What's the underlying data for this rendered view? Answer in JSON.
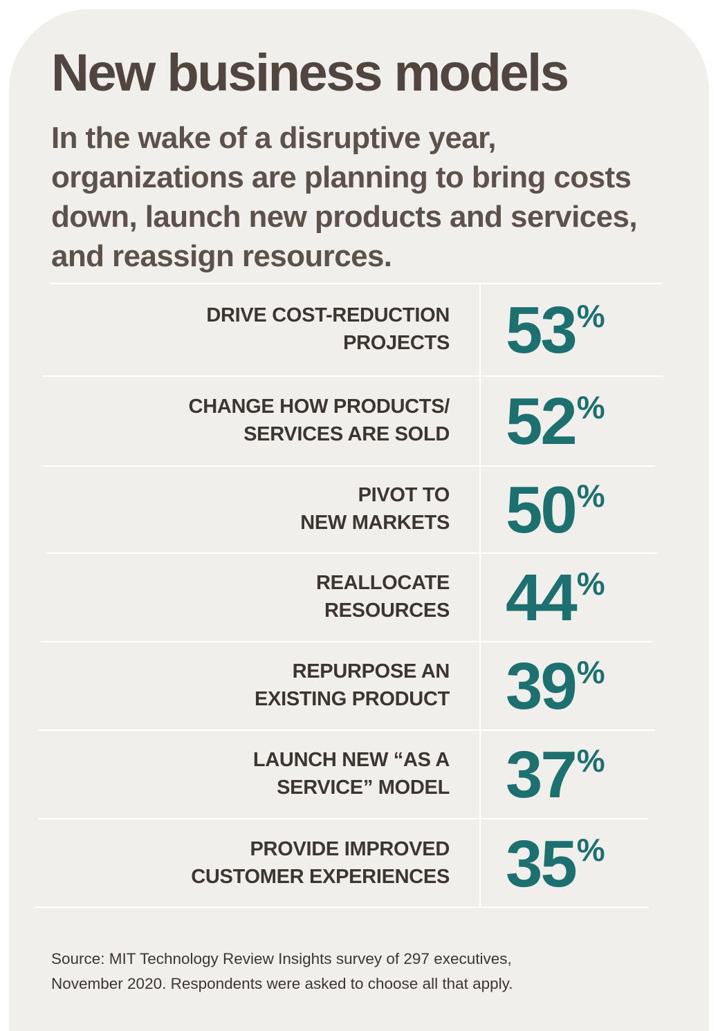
{
  "header": {
    "title": "New business models",
    "subtitle": "In the wake of a disruptive year, organizations are planning to bring costs down, launch new products and services, and reassign resources."
  },
  "colors": {
    "background": "#f1efec",
    "title": "#50463f",
    "value": "#1d7070",
    "label": "#3d3530"
  },
  "rows": [
    {
      "label_line1": "DRIVE COST-REDUCTION",
      "label_line2": "PROJECTS",
      "value": "53",
      "unit": "%"
    },
    {
      "label_line1": "CHANGE HOW PRODUCTS/",
      "label_line2": "SERVICES ARE SOLD",
      "value": "52",
      "unit": "%"
    },
    {
      "label_line1": "PIVOT TO",
      "label_line2": "NEW MARKETS",
      "value": "50",
      "unit": "%"
    },
    {
      "label_line1": "REALLOCATE",
      "label_line2": "RESOURCES",
      "value": "44",
      "unit": "%"
    },
    {
      "label_line1": "REPURPOSE AN",
      "label_line2": "EXISTING PRODUCT",
      "value": "39",
      "unit": "%"
    },
    {
      "label_line1": "LAUNCH NEW “AS A",
      "label_line2": "SERVICE” MODEL",
      "value": "37",
      "unit": "%"
    },
    {
      "label_line1": "PROVIDE IMPROVED",
      "label_line2": "CUSTOMER EXPERIENCES",
      "value": "35",
      "unit": "%"
    }
  ],
  "footer": {
    "source_line1": "Source: MIT Technology Review Insights survey of 297 executives,",
    "source_line2": "November 2020. Respondents were asked to choose all that apply."
  },
  "chart_data": {
    "type": "table",
    "title": "New business models",
    "subtitle": "In the wake of a disruptive year, organizations are planning to bring costs down, launch new products and services, and reassign resources.",
    "categories": [
      "DRIVE COST-REDUCTION PROJECTS",
      "CHANGE HOW PRODUCTS/ SERVICES ARE SOLD",
      "PIVOT TO NEW MARKETS",
      "REALLOCATE RESOURCES",
      "REPURPOSE AN EXISTING PRODUCT",
      "LAUNCH NEW “AS A SERVICE” MODEL",
      "PROVIDE IMPROVED CUSTOMER EXPERIENCES"
    ],
    "values": [
      53,
      52,
      50,
      44,
      39,
      37,
      35
    ],
    "unit": "%"
  }
}
